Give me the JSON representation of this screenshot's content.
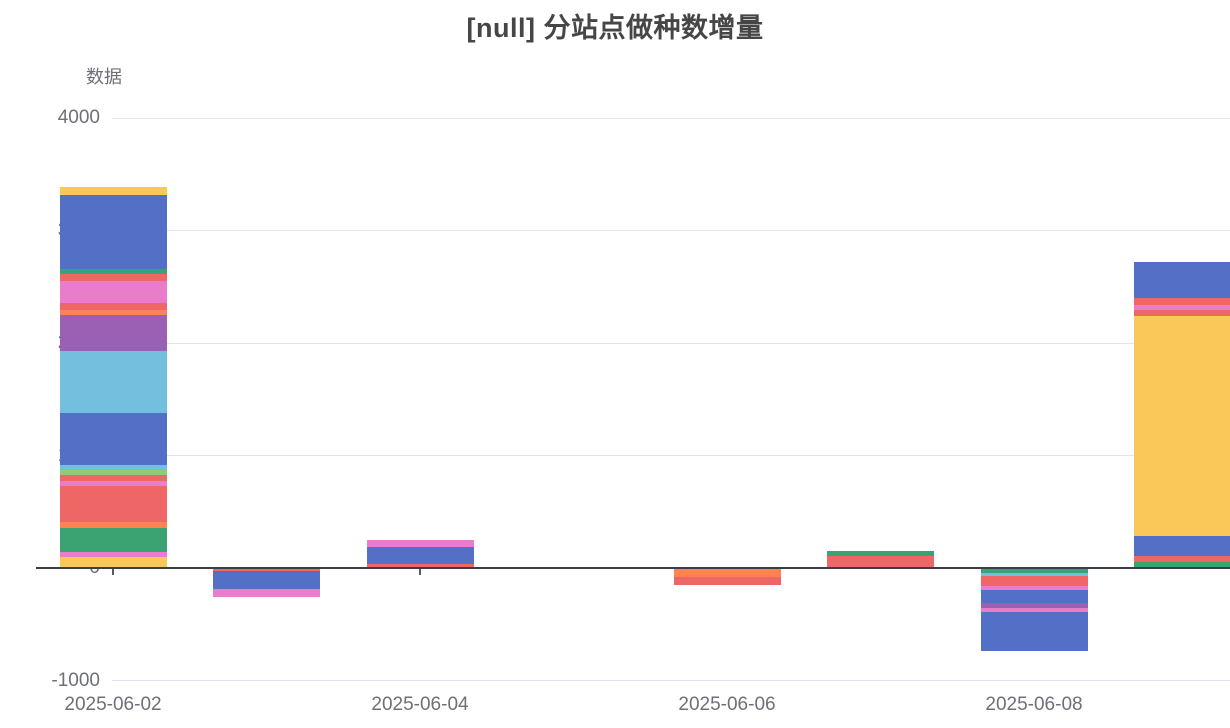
{
  "chart_data": {
    "type": "bar",
    "stacked": true,
    "title": "[null] 分站点做种数增量",
    "ylabel": "数据",
    "xlabel": "",
    "ylim": [
      -1000,
      4000
    ],
    "yticks": [
      4000,
      3000,
      2000,
      1000,
      0,
      -1000
    ],
    "xticks": [
      "2025-06-02",
      "2025-06-04",
      "2025-06-06",
      "2025-06-08"
    ],
    "categories": [
      "2025-06-02",
      "2025-06-03",
      "2025-06-04",
      "2025-06-05",
      "2025-06-06",
      "2025-06-07",
      "2025-06-08",
      "2025-06-09"
    ],
    "grid": true,
    "legend": "none",
    "palette": [
      "#5470c6",
      "#91cc75",
      "#fac858",
      "#ee6666",
      "#73c0de",
      "#3ba272",
      "#fc8452",
      "#9a60b4",
      "#ea7ccc"
    ],
    "bars": [
      {
        "category": "2025-06-02",
        "total": 3385,
        "segments": [
          {
            "color": "#fac858",
            "value": 100
          },
          {
            "color": "#ea7ccc",
            "value": 40
          },
          {
            "color": "#3ba272",
            "value": 220
          },
          {
            "color": "#fc8452",
            "value": 45
          },
          {
            "color": "#ee6666",
            "value": 320
          },
          {
            "color": "#ea7ccc",
            "value": 45
          },
          {
            "color": "#ee6666",
            "value": 55
          },
          {
            "color": "#91cc75",
            "value": 45
          },
          {
            "color": "#73c0de",
            "value": 45
          },
          {
            "color": "#5470c6",
            "value": 460
          },
          {
            "color": "#73c0de",
            "value": 550
          },
          {
            "color": "#9a60b4",
            "value": 320
          },
          {
            "color": "#fc8452",
            "value": 45
          },
          {
            "color": "#ee6666",
            "value": 70
          },
          {
            "color": "#ea7ccc",
            "value": 195
          },
          {
            "color": "#ee6666",
            "value": 55
          },
          {
            "color": "#3ba272",
            "value": 45
          },
          {
            "color": "#5470c6",
            "value": 660
          },
          {
            "color": "#fac858",
            "value": 70
          }
        ]
      },
      {
        "category": "2025-06-03",
        "total": -260,
        "segments": [
          {
            "color": "#ee6666",
            "value": -25
          },
          {
            "color": "#5470c6",
            "value": -165
          },
          {
            "color": "#ea7ccc",
            "value": -70
          }
        ]
      },
      {
        "category": "2025-06-04",
        "total": 250,
        "segments": [
          {
            "color": "#ee6666",
            "value": 35
          },
          {
            "color": "#5470c6",
            "value": 150
          },
          {
            "color": "#ea7ccc",
            "value": 65
          }
        ]
      },
      {
        "category": "2025-06-05",
        "total": 0,
        "segments": []
      },
      {
        "category": "2025-06-06",
        "total": -150,
        "segments": [
          {
            "color": "#fc8452",
            "value": -80
          },
          {
            "color": "#ee6666",
            "value": -70
          }
        ]
      },
      {
        "category": "2025-06-07",
        "total": 155,
        "segments": [
          {
            "color": "#ee6666",
            "value": 110
          },
          {
            "color": "#3ba272",
            "value": 45
          }
        ]
      },
      {
        "category": "2025-06-08",
        "total": -739,
        "segments": [
          {
            "color": "#3ba272",
            "value": -45
          },
          {
            "color": "#73c0de",
            "value": -27
          },
          {
            "color": "#ee6666",
            "value": -90
          },
          {
            "color": "#ea7ccc",
            "value": -36
          },
          {
            "color": "#5470c6",
            "value": -115
          },
          {
            "color": "#9a60b4",
            "value": -45
          },
          {
            "color": "#ea7ccc",
            "value": -36
          },
          {
            "color": "#5470c6",
            "value": -345
          }
        ]
      },
      {
        "category": "2025-06-09",
        "total": 2723,
        "segments": [
          {
            "color": "#3ba272",
            "value": 55
          },
          {
            "color": "#ee6666",
            "value": 53
          },
          {
            "color": "#5470c6",
            "value": 180
          },
          {
            "color": "#fac858",
            "value": 1955
          },
          {
            "color": "#ee6666",
            "value": 53
          },
          {
            "color": "#ea7ccc",
            "value": 45
          },
          {
            "color": "#ee6666",
            "value": 62
          },
          {
            "color": "#5470c6",
            "value": 320
          }
        ]
      }
    ]
  }
}
